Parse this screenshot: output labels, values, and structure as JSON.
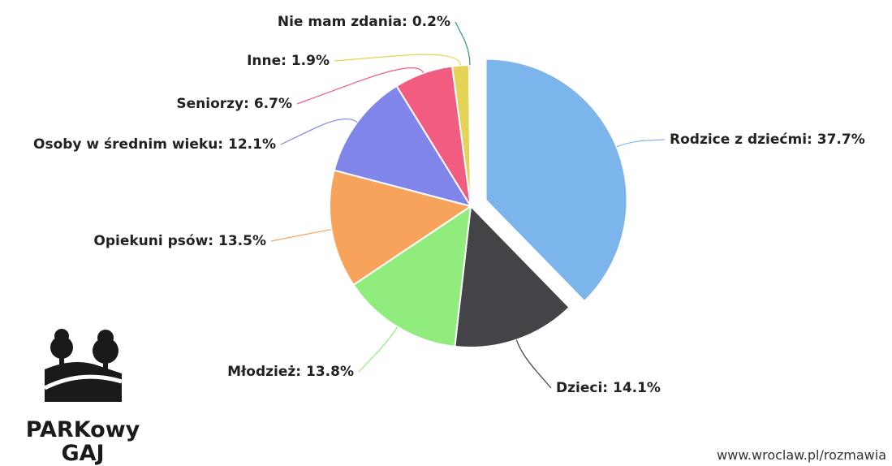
{
  "chart_data": {
    "type": "pie",
    "values": [
      37.7,
      14.1,
      13.8,
      13.5,
      12.1,
      6.7,
      1.9,
      0.2
    ],
    "value_labels": [
      "Rodzice z dziećmi: 37.7%",
      "Dzieci: 14.1%",
      "Młodzież: 13.8%",
      "Opiekuni psów: 13.5%",
      "Osoby w średnim wieku: 12.1%",
      "Seniorzy: 6.7%",
      "Inne: 1.9%",
      "Nie mam zdania: 0.2%"
    ],
    "colors": [
      "#7cb5ec",
      "#434348",
      "#90ed7d",
      "#f7a35c",
      "#8085e9",
      "#f15c80",
      "#e4d354",
      "#2b908f"
    ],
    "exploded": [
      0
    ]
  },
  "logo": {
    "line1": "PARKowy",
    "line2": "GAJ"
  },
  "footer": "www.wroclaw.pl/rozmawia"
}
